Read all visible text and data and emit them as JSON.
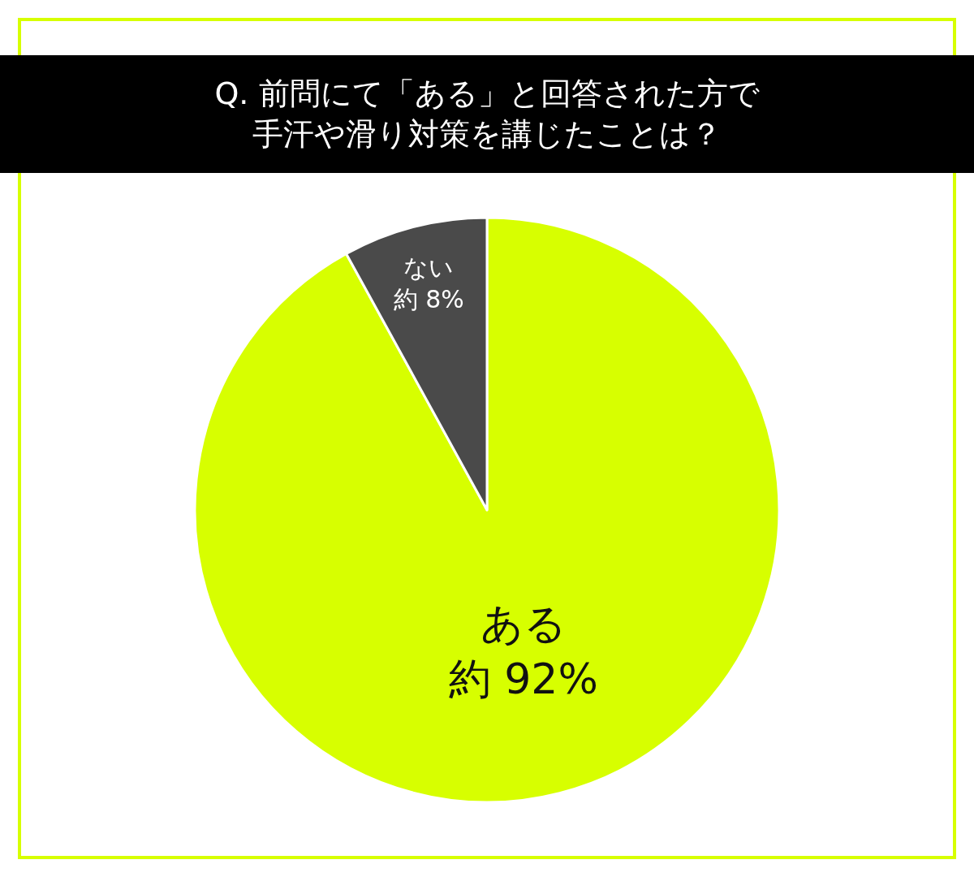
{
  "chart_data": {
    "type": "pie",
    "title": "Q. 前問にて「ある」と回答された方で",
    "subtitle": "手汗や滑り対策を講じたことは？",
    "categories": [
      "ある",
      "ない"
    ],
    "values": [
      92,
      8
    ],
    "value_labels": [
      "約 92%",
      "約 8%"
    ],
    "colors": [
      "#d7ff00",
      "#4a4a4a"
    ],
    "legend": false
  }
}
